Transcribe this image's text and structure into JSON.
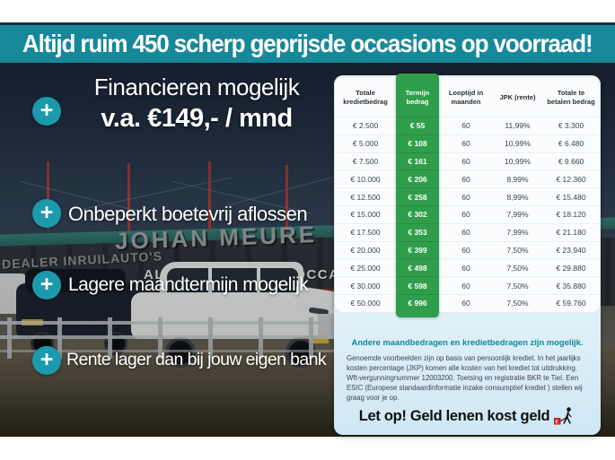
{
  "banner": {
    "text": "Altijd ruim 450 scherp geprijsde occasions op voorraad!"
  },
  "usps": [
    {
      "line1": "Financieren mogelijk",
      "line2": "v.a. €149,- / mnd"
    },
    {
      "text": "Onbeperkt boetevrij aflossen"
    },
    {
      "text": "Lagere maandtermijn mogelijk"
    },
    {
      "text": "Rente lager dan bij jouw eigen bank"
    }
  ],
  "icons": {
    "plus": "+",
    "warning_icon": "geld-lenen-kost-geld"
  },
  "photo_signs": {
    "dealer_line": "DEALER INRUILAUTO'S",
    "name": "JOHAN MEURE",
    "sub_line": "ALTIJD 450 BOVAG OCCASIONS"
  },
  "finance_panel": {
    "table": {
      "headers": [
        "Totale kredietbedrag",
        "Termijn bedrag",
        "Looptijd in maanden",
        "JPK (rente)",
        "Totale te betalen bedrag"
      ],
      "highlight_column": 1,
      "rows": [
        [
          "€ 2.500",
          "€ 55",
          "60",
          "11,99%",
          "€ 3.300"
        ],
        [
          "€ 5.000",
          "€ 108",
          "60",
          "10,99%",
          "€ 6.480"
        ],
        [
          "€ 7.500",
          "€ 161",
          "60",
          "10,99%",
          "€ 9.660"
        ],
        [
          "€ 10.000",
          "€ 206",
          "60",
          "8,99%",
          "€ 12.360"
        ],
        [
          "€ 12.500",
          "€ 258",
          "60",
          "8,99%",
          "€ 15.480"
        ],
        [
          "€ 15.000",
          "€ 302",
          "60",
          "7,99%",
          "€ 18.120"
        ],
        [
          "€ 17.500",
          "€ 353",
          "60",
          "7,99%",
          "€ 21.180"
        ],
        [
          "€ 20.000",
          "€ 399",
          "60",
          "7,50%",
          "€ 23.940"
        ],
        [
          "€ 25.000",
          "€ 498",
          "60",
          "7,50%",
          "€ 29.880"
        ],
        [
          "€ 30.000",
          "€ 598",
          "60",
          "7,50%",
          "€ 35.880"
        ],
        [
          "€ 50.000",
          "€ 996",
          "60",
          "7,50%",
          "€ 59.760"
        ]
      ]
    },
    "note_title": "Andere maandbedragen en kredietbedragen zijn mogelijk.",
    "note_body": "Genoemde voorbeelden zijn op basis van persoonlijk krediet. In het jaarlijks kosten percentage (JKP) komen alle kosten van het krediet tot uitdrukking. Wft-vergunningnummer 12003200. Toetsing en registratie BKR te Tiel. Een ESIC (Europese standaardinformatie inzake consumptief krediet ) stellen wij graag voor je op.",
    "warning_text": "Let op! Geld lenen kost geld"
  },
  "colors": {
    "banner_teal": "#17889a",
    "accent_teal": "#1b9aad",
    "highlight_green": "#2f9e4a",
    "warning_red": "#cc1f1f",
    "panel_blue": "#cfe7f5"
  }
}
